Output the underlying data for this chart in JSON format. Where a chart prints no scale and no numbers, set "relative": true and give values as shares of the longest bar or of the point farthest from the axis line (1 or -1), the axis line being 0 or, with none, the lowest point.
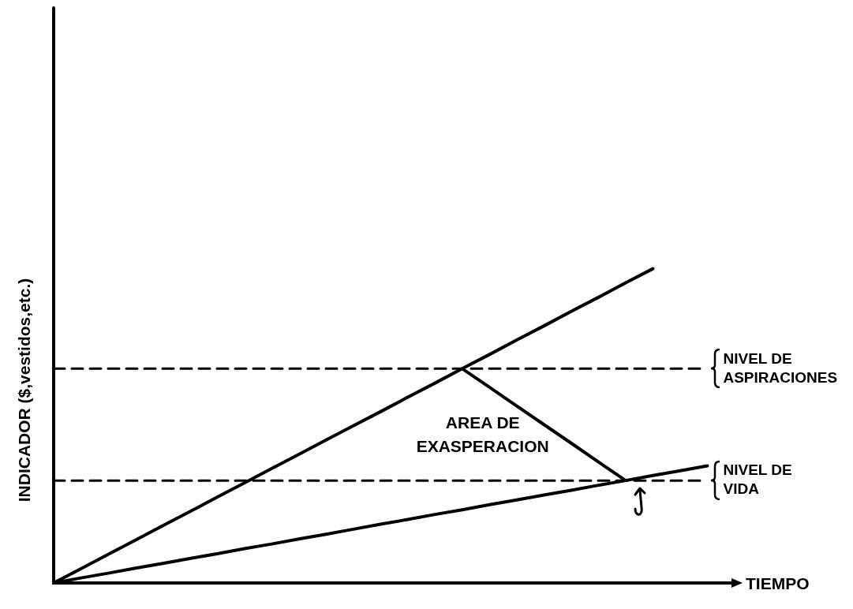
{
  "chart_data": {
    "type": "line",
    "relative": true,
    "xlabel": "TIEMPO",
    "ylabel": "INDICADOR ($,vestidos,etc.)",
    "categories": [
      null,
      null,
      null,
      null,
      null,
      null,
      null,
      null,
      null,
      null,
      null,
      null,
      null,
      null,
      null,
      null,
      null,
      null,
      null,
      null,
      null,
      null,
      null,
      null,
      null
    ],
    "series": [
      {
        "color": "#000000",
        "values": [
          0,
          0.045,
          0.091,
          0.136,
          0.182,
          0.227,
          0.273,
          0.318,
          0.364,
          0.409,
          0.455,
          0.5,
          0.545,
          0.591,
          0.636,
          0.682,
          0.727,
          0.773,
          0.818,
          0.864,
          0.909,
          0.955,
          1,
          null,
          null
        ]
      },
      {
        "color": "#000000",
        "values": [
          0,
          0.016,
          0.031,
          0.047,
          0.062,
          0.078,
          0.093,
          0.109,
          0.124,
          0.14,
          0.155,
          0.171,
          0.187,
          0.202,
          0.218,
          0.233,
          0.249,
          0.264,
          0.28,
          0.295,
          0.311,
          0.326,
          0.342,
          0.357,
          0.373
        ]
      },
      {
        "color": "#000000",
        "values": [
          null,
          null,
          null,
          null,
          null,
          null,
          null,
          null,
          null,
          null,
          null,
          null,
          null,
          null,
          null,
          0.682,
          0.623,
          0.563,
          0.504,
          0.445,
          0.385,
          0.326,
          null,
          null,
          null
        ]
      }
    ],
    "ref_lines": [
      {
        "axis": "y",
        "value": 0.682,
        "label": "NIVEL DE ASPIRACIONES",
        "color": "#000000",
        "line_style": "dashed"
      },
      {
        "axis": "y",
        "value": 0.326,
        "label": "NIVEL DE VIDA",
        "color": "#000000",
        "line_style": "dashed"
      }
    ],
    "annotations": [
      "AREA DE EXASPERACION"
    ],
    "grid": false,
    "legend": false,
    "marker": "none",
    "line_style": "solid"
  }
}
